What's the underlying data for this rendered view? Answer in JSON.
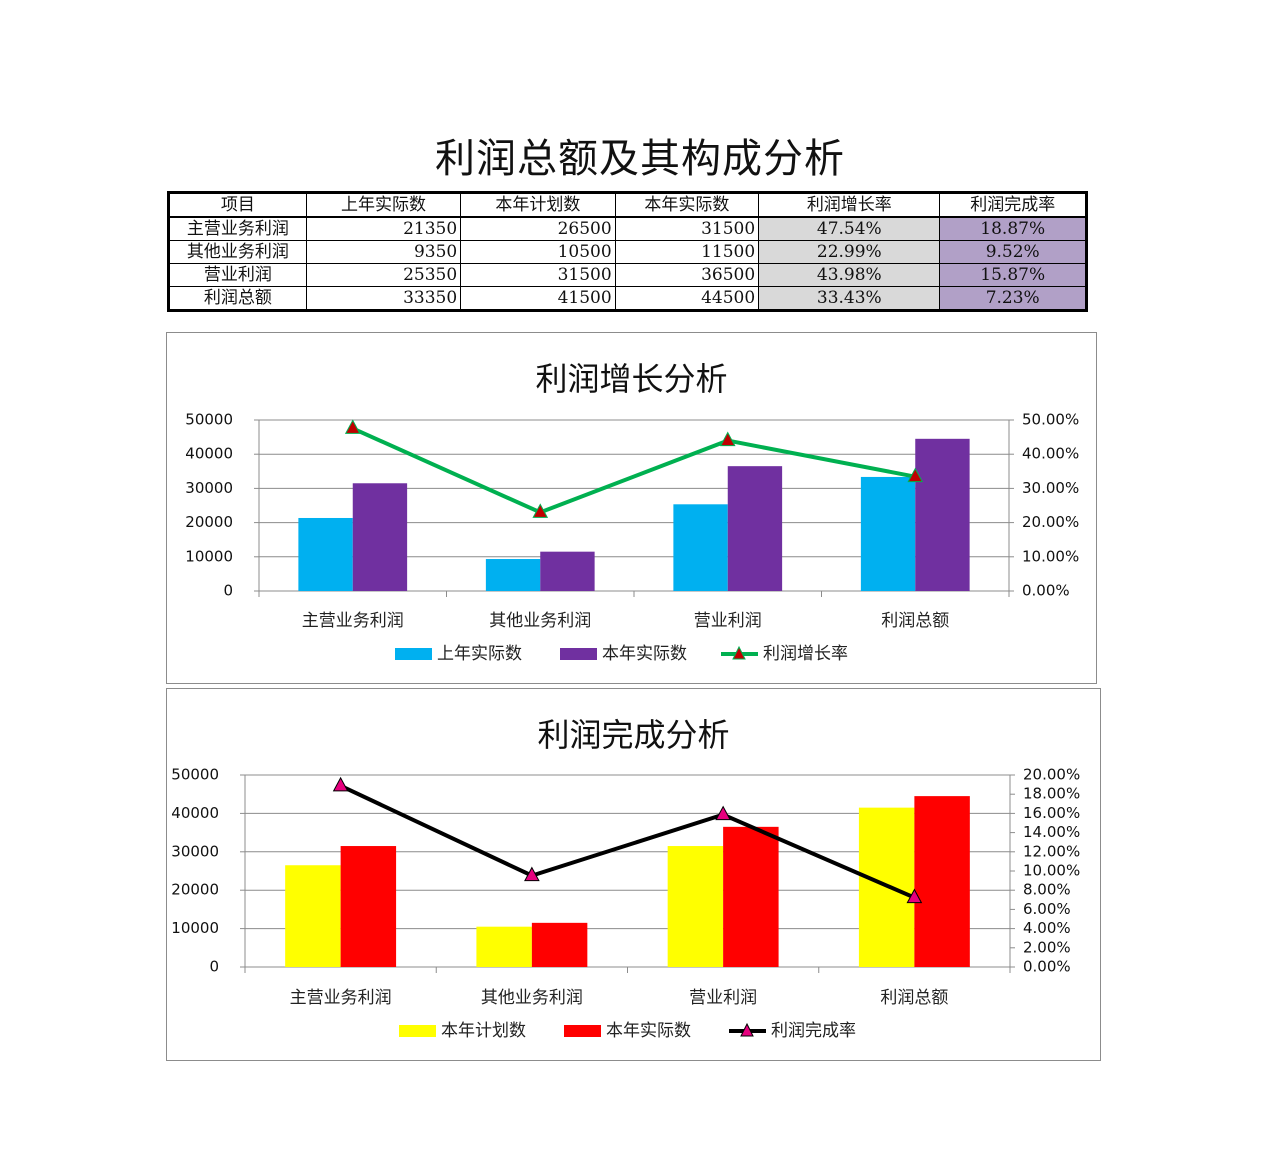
{
  "title": "利润总额及其构成分析",
  "table": {
    "headers": [
      "项目",
      "上年实际数",
      "本年计划数",
      "本年实际数",
      "利润增长率",
      "利润完成率"
    ],
    "rows": [
      [
        "主营业务利润",
        "21350",
        "26500",
        "31500",
        "47.54%",
        "18.87%"
      ],
      [
        "其他业务利润",
        "9350",
        "10500",
        "11500",
        "22.99%",
        "9.52%"
      ],
      [
        "营业利润",
        "25350",
        "31500",
        "36500",
        "43.98%",
        "15.87%"
      ],
      [
        "利润总额",
        "33350",
        "41500",
        "44500",
        "33.43%",
        "7.23%"
      ]
    ]
  },
  "colors": {
    "prev_actual": "#00b0f0",
    "curr_actual_purple": "#7030a0",
    "growth_line": "#00b050",
    "plan": "#ffff00",
    "curr_actual_red": "#ff0000",
    "completion_line": "#000000",
    "marker_growth": "#c00000",
    "marker_completion": "#e6007e"
  },
  "chart_data": [
    {
      "type": "bar",
      "title": "利润增长分析",
      "categories": [
        "主营业务利润",
        "其他业务利润",
        "营业利润",
        "利润总额"
      ],
      "series": [
        {
          "name": "上年实际数",
          "kind": "bar",
          "axis": "left",
          "values": [
            21350,
            9350,
            25350,
            33350
          ]
        },
        {
          "name": "本年实际数",
          "kind": "bar",
          "axis": "left",
          "values": [
            31500,
            11500,
            36500,
            44500
          ]
        },
        {
          "name": "利润增长率",
          "kind": "line",
          "axis": "right",
          "values": [
            0.4754,
            0.2299,
            0.4398,
            0.3343
          ]
        }
      ],
      "y_left": {
        "min": 0,
        "max": 50000,
        "ticks": [
          "0",
          "10000",
          "20000",
          "30000",
          "40000",
          "50000"
        ]
      },
      "y_right": {
        "min": 0,
        "max": 0.5,
        "ticks": [
          "0.00%",
          "10.00%",
          "20.00%",
          "30.00%",
          "40.00%",
          "50.00%"
        ]
      },
      "grid": true,
      "legend": "bottom"
    },
    {
      "type": "bar",
      "title": "利润完成分析",
      "categories": [
        "主营业务利润",
        "其他业务利润",
        "营业利润",
        "利润总额"
      ],
      "series": [
        {
          "name": "本年计划数",
          "kind": "bar",
          "axis": "left",
          "values": [
            26500,
            10500,
            31500,
            41500
          ]
        },
        {
          "name": "本年实际数",
          "kind": "bar",
          "axis": "left",
          "values": [
            31500,
            11500,
            36500,
            44500
          ]
        },
        {
          "name": "利润完成率",
          "kind": "line",
          "axis": "right",
          "values": [
            0.1887,
            0.0952,
            0.1587,
            0.0723
          ]
        }
      ],
      "y_left": {
        "min": 0,
        "max": 50000,
        "ticks": [
          "0",
          "10000",
          "20000",
          "30000",
          "40000",
          "50000"
        ]
      },
      "y_right": {
        "min": 0,
        "max": 0.2,
        "ticks": [
          "0.00%",
          "2.00%",
          "4.00%",
          "6.00%",
          "8.00%",
          "10.00%",
          "12.00%",
          "14.00%",
          "16.00%",
          "18.00%",
          "20.00%"
        ]
      },
      "grid": true,
      "legend": "bottom"
    }
  ]
}
